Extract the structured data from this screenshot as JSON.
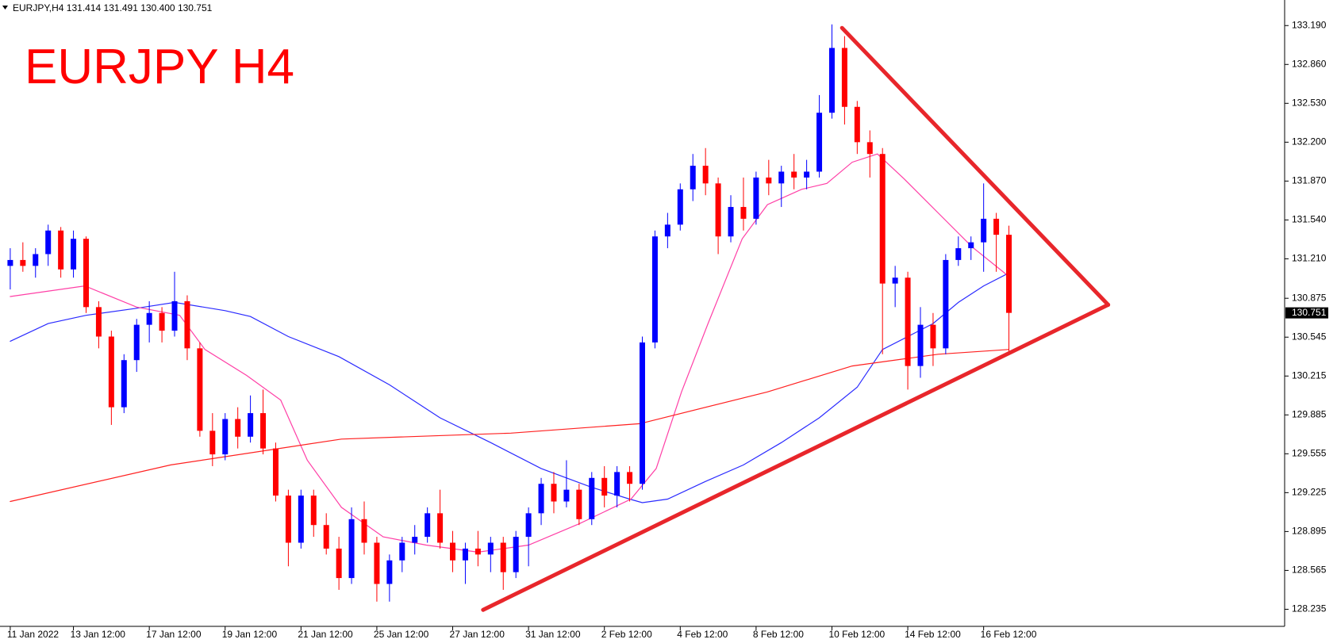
{
  "chart_data": {
    "type": "candlestick",
    "header": "EURJPY,H4  131.414 131.491 130.400 130.751",
    "title": "EURJPY H4",
    "categories": [
      "11 Jan 2022",
      null,
      null,
      null,
      null,
      "13 Jan 12:00",
      null,
      null,
      null,
      null,
      null,
      "17 Jan 12:00",
      null,
      null,
      null,
      null,
      null,
      "19 Jan 12:00",
      null,
      null,
      null,
      null,
      null,
      "21 Jan 12:00",
      null,
      null,
      null,
      null,
      null,
      "25 Jan 12:00",
      null,
      null,
      null,
      null,
      null,
      "27 Jan 12:00",
      null,
      null,
      null,
      null,
      null,
      "31 Jan 12:00",
      null,
      null,
      null,
      null,
      null,
      "2 Feb 12:00",
      null,
      null,
      null,
      null,
      null,
      "4 Feb 12:00",
      null,
      null,
      null,
      null,
      null,
      "8 Feb 12:00",
      null,
      null,
      null,
      null,
      null,
      "10 Feb 12:00",
      null,
      null,
      null,
      null,
      null,
      "14 Feb 12:00",
      null,
      null,
      null,
      null,
      null,
      "16 Feb 12:00",
      null,
      null
    ],
    "open": [
      131.15,
      131.2,
      131.15,
      131.25,
      131.45,
      131.12,
      131.38,
      130.8,
      130.55,
      129.95,
      130.35,
      130.65,
      130.75,
      130.6,
      130.85,
      130.45,
      129.75,
      129.55,
      129.85,
      129.7,
      129.9,
      129.6,
      129.2,
      128.8,
      129.2,
      128.95,
      128.75,
      128.5,
      129.0,
      128.8,
      128.45,
      128.65,
      128.8,
      128.85,
      129.05,
      128.8,
      128.65,
      128.75,
      128.7,
      128.8,
      128.55,
      128.85,
      129.05,
      129.3,
      129.15,
      129.25,
      129.0,
      129.35,
      129.2,
      129.4,
      129.3,
      130.5,
      131.4,
      131.5,
      131.8,
      132.0,
      131.85,
      131.4,
      131.65,
      131.55,
      131.9,
      131.85,
      131.95,
      131.9,
      131.95,
      132.45,
      133.0,
      132.5,
      132.2,
      132.1,
      131.0,
      131.05,
      130.3,
      130.65,
      130.45,
      131.2,
      131.3,
      131.35,
      131.55,
      131.414
    ],
    "high": [
      131.3,
      131.35,
      131.3,
      131.5,
      131.48,
      131.45,
      131.4,
      130.85,
      130.6,
      130.4,
      130.7,
      130.85,
      130.8,
      131.1,
      130.9,
      130.5,
      129.9,
      129.9,
      129.95,
      130.05,
      130.1,
      129.65,
      129.25,
      129.25,
      129.25,
      129.05,
      128.85,
      129.1,
      129.15,
      128.85,
      128.7,
      128.85,
      128.95,
      129.1,
      129.25,
      128.9,
      128.8,
      128.9,
      128.85,
      128.85,
      128.9,
      129.1,
      129.35,
      129.4,
      129.5,
      129.3,
      129.4,
      129.45,
      129.45,
      129.45,
      130.55,
      131.45,
      131.6,
      131.85,
      132.1,
      132.15,
      131.9,
      131.75,
      131.9,
      131.95,
      132.05,
      132.0,
      132.1,
      132.05,
      132.6,
      133.2,
      133.1,
      132.55,
      132.3,
      132.15,
      131.15,
      131.1,
      130.8,
      130.75,
      131.25,
      131.4,
      131.4,
      131.85,
      131.6,
      131.491
    ],
    "low": [
      130.95,
      131.1,
      131.05,
      131.15,
      131.05,
      131.05,
      130.75,
      130.45,
      129.8,
      129.9,
      130.25,
      130.5,
      130.5,
      130.55,
      130.35,
      129.7,
      129.45,
      129.5,
      129.6,
      129.65,
      129.55,
      129.15,
      128.6,
      128.75,
      128.85,
      128.7,
      128.4,
      128.45,
      128.7,
      128.3,
      128.3,
      128.55,
      128.7,
      128.8,
      128.75,
      128.55,
      128.45,
      128.6,
      128.55,
      128.4,
      128.5,
      128.6,
      128.95,
      129.05,
      129.1,
      128.95,
      128.95,
      129.1,
      129.1,
      129.15,
      129.25,
      130.45,
      131.3,
      131.45,
      131.7,
      131.75,
      131.25,
      131.35,
      131.45,
      131.5,
      131.75,
      131.65,
      131.8,
      131.8,
      131.9,
      132.4,
      132.35,
      132.1,
      131.9,
      130.4,
      130.8,
      130.1,
      130.2,
      130.3,
      130.4,
      131.15,
      131.2,
      131.1,
      131.1,
      130.4
    ],
    "close": [
      131.2,
      131.15,
      131.25,
      131.45,
      131.12,
      131.38,
      130.8,
      130.55,
      129.95,
      130.35,
      130.65,
      130.75,
      130.6,
      130.85,
      130.45,
      129.75,
      129.55,
      129.85,
      129.7,
      129.9,
      129.6,
      129.2,
      128.8,
      129.2,
      128.95,
      128.75,
      128.5,
      129.0,
      128.8,
      128.45,
      128.65,
      128.8,
      128.85,
      129.05,
      128.8,
      128.65,
      128.75,
      128.7,
      128.8,
      128.55,
      128.85,
      129.05,
      129.3,
      129.15,
      129.25,
      129.0,
      129.35,
      129.2,
      129.4,
      129.3,
      130.5,
      131.4,
      131.5,
      131.8,
      132.0,
      131.85,
      131.4,
      131.65,
      131.55,
      131.9,
      131.85,
      131.95,
      131.9,
      131.95,
      132.45,
      133.0,
      132.5,
      132.2,
      132.1,
      131.0,
      131.05,
      130.3,
      130.65,
      130.45,
      131.2,
      131.3,
      131.35,
      131.55,
      131.414,
      130.751
    ],
    "up_color": "#0000ff",
    "down_color": "#ff0000",
    "lines": [
      {
        "color": "#2a2aff",
        "x": [
          0,
          3,
          6,
          10,
          13,
          17,
          19,
          22,
          26,
          30,
          34,
          38,
          42,
          46,
          49,
          50,
          52,
          55,
          58,
          61,
          64,
          67,
          69,
          71,
          73,
          75,
          77,
          79
        ],
        "values": [
          130.51,
          130.66,
          130.73,
          130.79,
          130.84,
          130.77,
          130.72,
          130.55,
          130.38,
          130.14,
          129.86,
          129.65,
          129.43,
          129.27,
          129.17,
          129.14,
          129.17,
          129.32,
          129.46,
          129.65,
          129.86,
          130.12,
          130.44,
          130.55,
          130.66,
          130.84,
          130.98,
          131.09
        ]
      },
      {
        "color": "#ff3fa6",
        "x": [
          0,
          5.9,
          10,
          13.4,
          15.4,
          18.7,
          21.4,
          23.5,
          26.2,
          29.5,
          32.9,
          37,
          41,
          45,
          49.1,
          51.1,
          53.1,
          55.2,
          57.9,
          59.9,
          62.6,
          64.6,
          66.6,
          68.6,
          70.7,
          73.4,
          76.1,
          79
        ],
        "values": [
          130.89,
          130.98,
          130.8,
          130.73,
          130.44,
          130.22,
          130.01,
          129.5,
          129.1,
          128.85,
          128.78,
          128.72,
          128.78,
          128.96,
          129.17,
          129.43,
          130.08,
          130.66,
          131.38,
          131.67,
          131.8,
          131.85,
          132.03,
          132.1,
          131.89,
          131.6,
          131.31,
          131.06
        ]
      },
      {
        "color": "#ff2020",
        "x": [
          0,
          12.7,
          26.2,
          39.6,
          49.8,
          59.9,
          66.6,
          73.4,
          79
        ],
        "values": [
          129.15,
          129.46,
          129.68,
          129.73,
          129.81,
          130.08,
          130.3,
          130.4,
          130.44
        ]
      }
    ],
    "trendlines": [
      {
        "color": "#e8262b",
        "x": [
          65.8,
          86.85
        ],
        "values": [
          133.17,
          130.82
        ]
      },
      {
        "color": "#e8262b",
        "x": [
          37.4,
          86.85
        ],
        "values": [
          128.23,
          130.82
        ]
      }
    ],
    "current_price": 130.751,
    "xlim": [
      -0.81,
      100.81
    ],
    "ylim": [
      128.09,
      133.407
    ],
    "yticks": [
      {
        "value": 133.19,
        "label": "133.190"
      },
      {
        "value": 132.86,
        "label": "132.860"
      },
      {
        "value": 132.53,
        "label": "132.530"
      },
      {
        "value": 132.2,
        "label": "132.200"
      },
      {
        "value": 131.87,
        "label": "131.870"
      },
      {
        "value": 131.54,
        "label": "131.540"
      },
      {
        "value": 131.21,
        "label": "131.210"
      },
      130.875,
      130.545,
      130.215,
      129.885,
      129.555,
      129.225,
      128.895,
      128.565,
      128.235
    ]
  }
}
